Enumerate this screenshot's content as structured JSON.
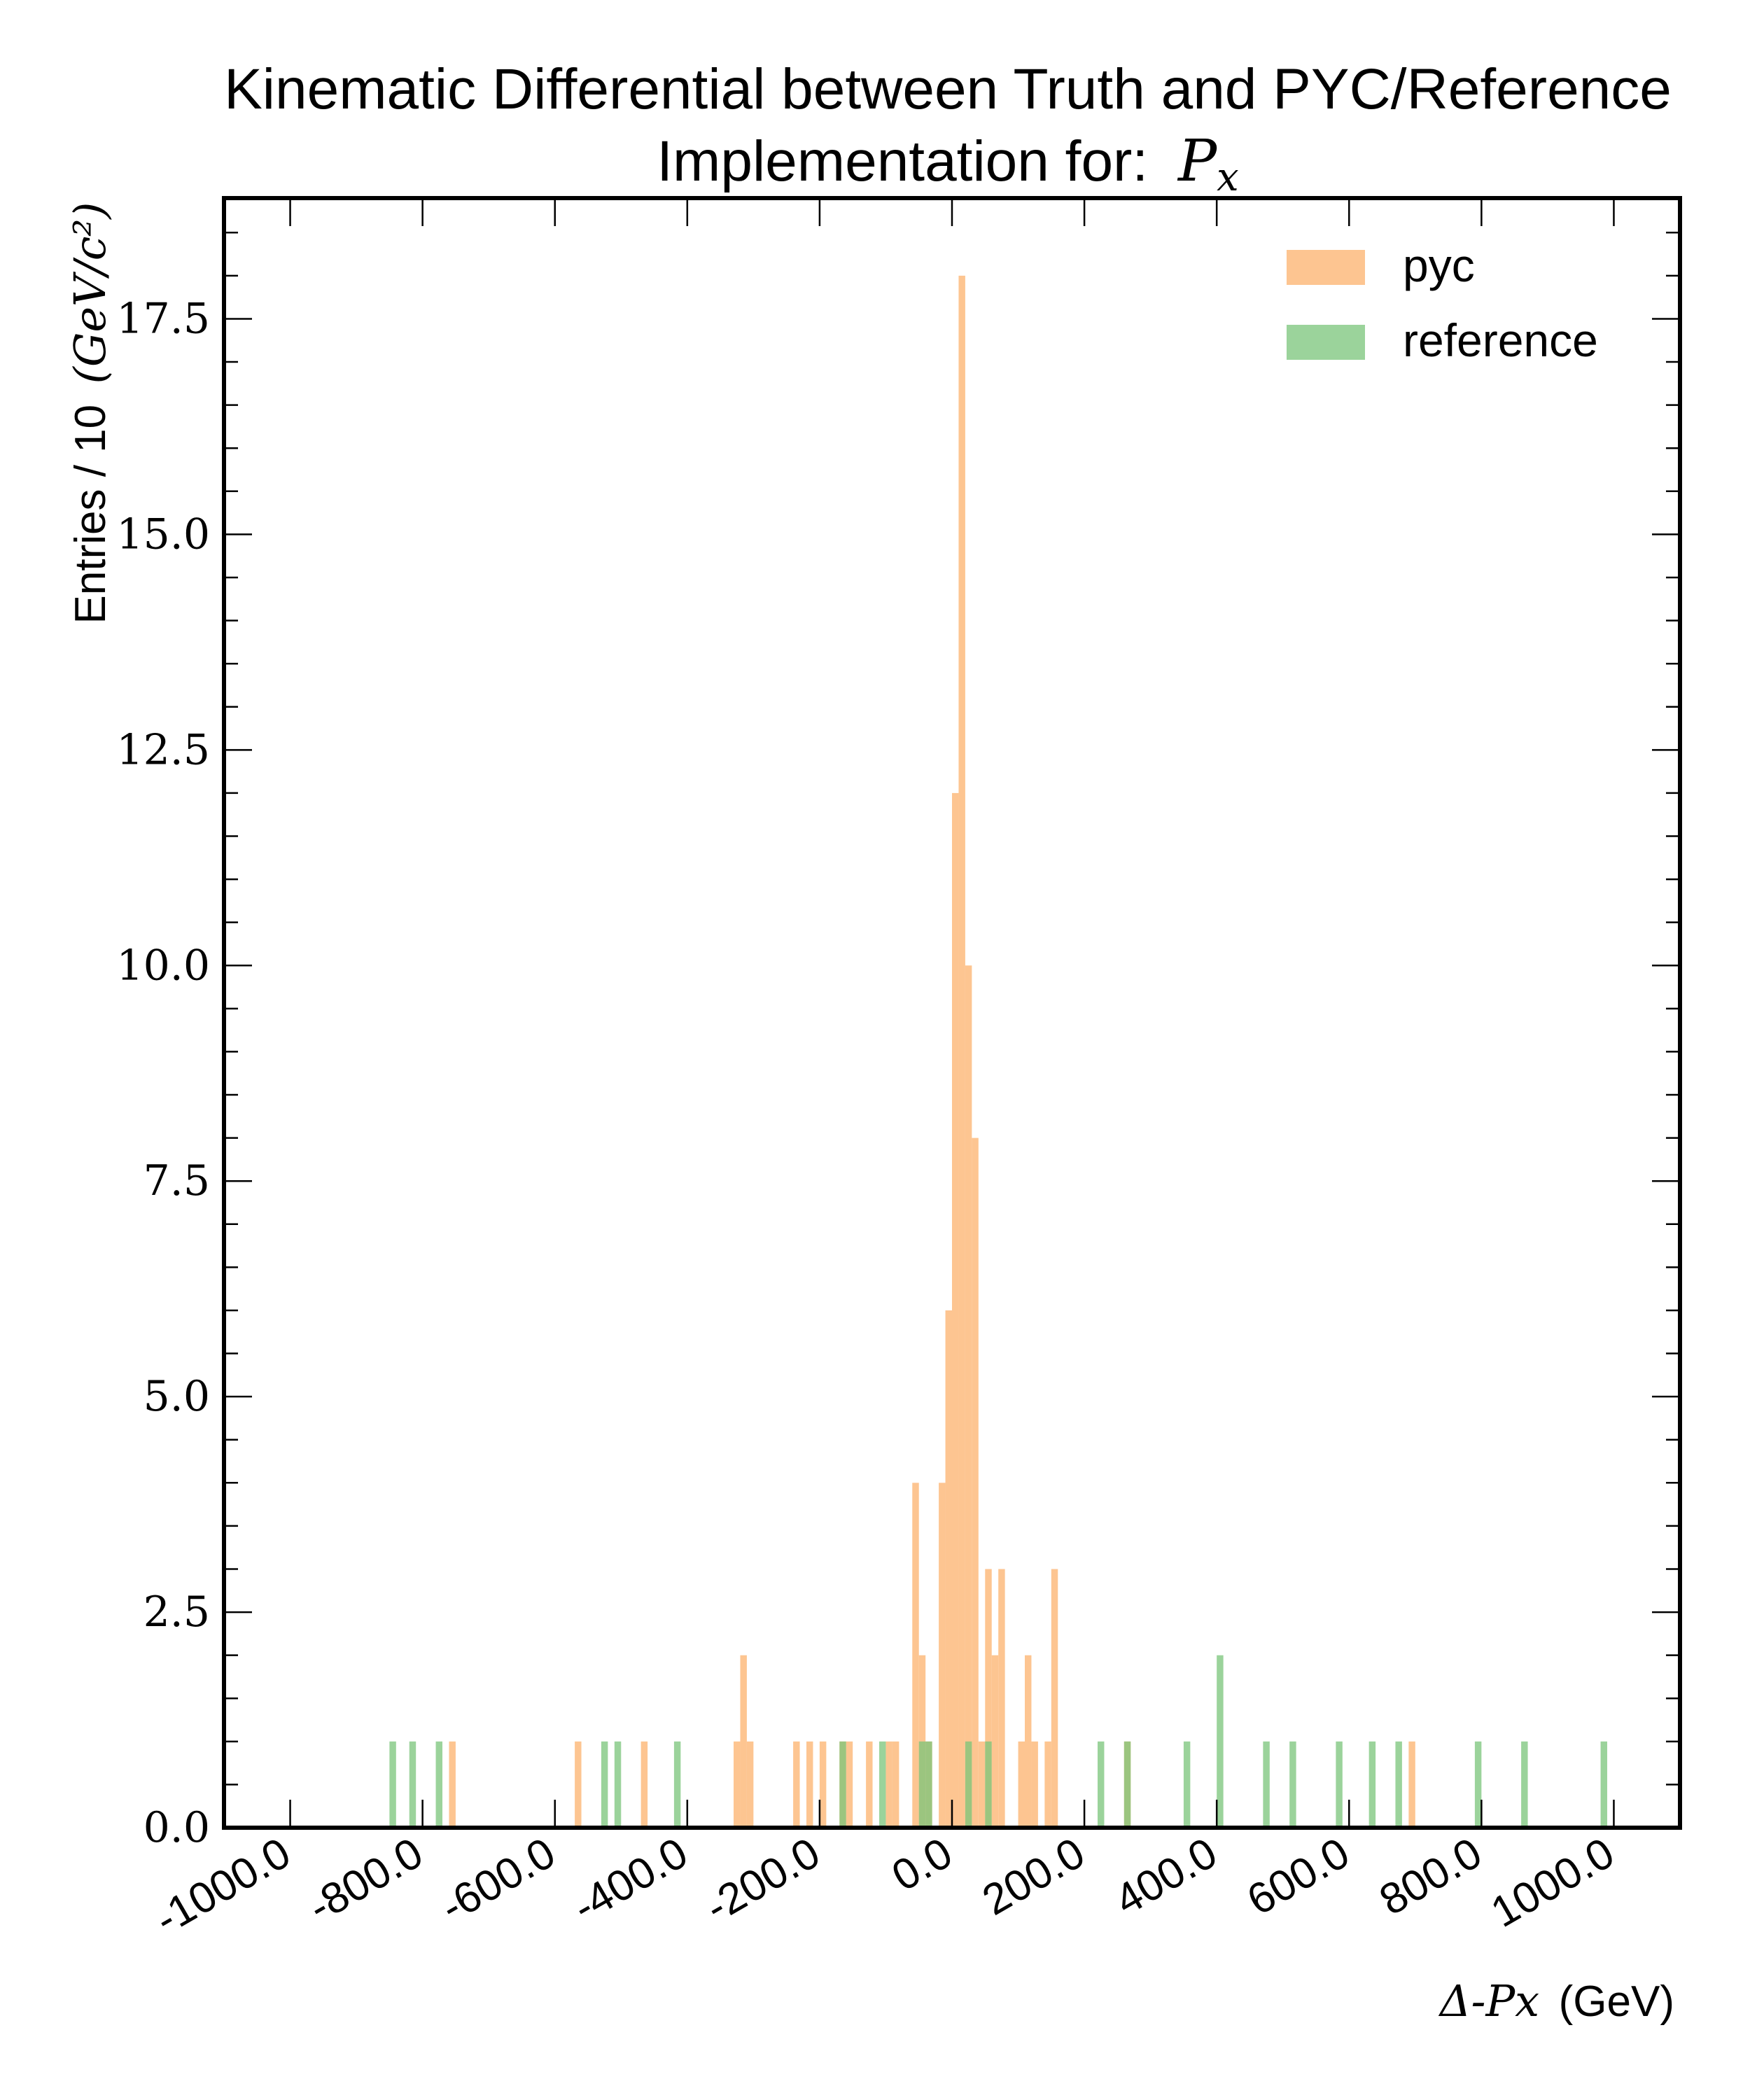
{
  "chart_data": {
    "type": "bar",
    "title_line1": "Kinematic Differential between Truth and PYC/Reference",
    "title_line2_prefix": "Implementation for:",
    "title_line2_math": "Px",
    "xlabel_math": "Δ-Px",
    "xlabel_unit": "(GeV)",
    "ylabel_text": "Entries / 10",
    "ylabel_math": "(GeV/c²)",
    "xlim": [
      -1100,
      1100
    ],
    "ylim": [
      0,
      18.9
    ],
    "xticks": [
      -1000,
      -800,
      -600,
      -400,
      -200,
      0,
      200,
      400,
      600,
      800,
      1000
    ],
    "xtick_labels": [
      "-1000.0",
      "-800.0",
      "-600.0",
      "-400.0",
      "-200.0",
      "0.0",
      "200.0",
      "400.0",
      "600.0",
      "800.0",
      "1000.0"
    ],
    "yticks": [
      0,
      2.5,
      5,
      7.5,
      10,
      12.5,
      15,
      17.5
    ],
    "ytick_labels": [
      "0.0",
      "2.5",
      "5.0",
      "7.5",
      "10.0",
      "12.5",
      "15.0",
      "17.5"
    ],
    "bin_width": 10,
    "legend_position": "top-right",
    "series": [
      {
        "name": "pyc",
        "color": "#fdbf85",
        "bins": [
          {
            "x": -760,
            "y": 1
          },
          {
            "x": -570,
            "y": 1
          },
          {
            "x": -470,
            "y": 1
          },
          {
            "x": -330,
            "y": 1
          },
          {
            "x": -320,
            "y": 2
          },
          {
            "x": -310,
            "y": 1
          },
          {
            "x": -240,
            "y": 1
          },
          {
            "x": -220,
            "y": 1
          },
          {
            "x": -200,
            "y": 1
          },
          {
            "x": -170,
            "y": 1
          },
          {
            "x": -160,
            "y": 1
          },
          {
            "x": -130,
            "y": 1
          },
          {
            "x": -100,
            "y": 1
          },
          {
            "x": -90,
            "y": 1
          },
          {
            "x": -60,
            "y": 4
          },
          {
            "x": -50,
            "y": 2
          },
          {
            "x": -40,
            "y": 1
          },
          {
            "x": -20,
            "y": 4
          },
          {
            "x": -10,
            "y": 6
          },
          {
            "x": 0,
            "y": 12
          },
          {
            "x": 10,
            "y": 18
          },
          {
            "x": 20,
            "y": 10
          },
          {
            "x": 30,
            "y": 8
          },
          {
            "x": 40,
            "y": 1
          },
          {
            "x": 50,
            "y": 3
          },
          {
            "x": 60,
            "y": 2
          },
          {
            "x": 70,
            "y": 3
          },
          {
            "x": 100,
            "y": 1
          },
          {
            "x": 110,
            "y": 2
          },
          {
            "x": 120,
            "y": 1
          },
          {
            "x": 140,
            "y": 1
          },
          {
            "x": 150,
            "y": 3
          },
          {
            "x": 260,
            "y": 1
          },
          {
            "x": 690,
            "y": 1
          }
        ]
      },
      {
        "name": "reference",
        "color": "#79c47a",
        "bins": [
          {
            "x": -850,
            "y": 1
          },
          {
            "x": -820,
            "y": 1
          },
          {
            "x": -780,
            "y": 1
          },
          {
            "x": -530,
            "y": 1
          },
          {
            "x": -510,
            "y": 1
          },
          {
            "x": -420,
            "y": 1
          },
          {
            "x": -170,
            "y": 1
          },
          {
            "x": -110,
            "y": 1
          },
          {
            "x": -50,
            "y": 1
          },
          {
            "x": -40,
            "y": 1
          },
          {
            "x": 20,
            "y": 1
          },
          {
            "x": 50,
            "y": 1
          },
          {
            "x": 220,
            "y": 1
          },
          {
            "x": 260,
            "y": 1
          },
          {
            "x": 350,
            "y": 1
          },
          {
            "x": 400,
            "y": 2
          },
          {
            "x": 470,
            "y": 1
          },
          {
            "x": 510,
            "y": 1
          },
          {
            "x": 580,
            "y": 1
          },
          {
            "x": 630,
            "y": 1
          },
          {
            "x": 670,
            "y": 1
          },
          {
            "x": 790,
            "y": 1
          },
          {
            "x": 860,
            "y": 1
          },
          {
            "x": 980,
            "y": 1
          }
        ]
      }
    ]
  }
}
